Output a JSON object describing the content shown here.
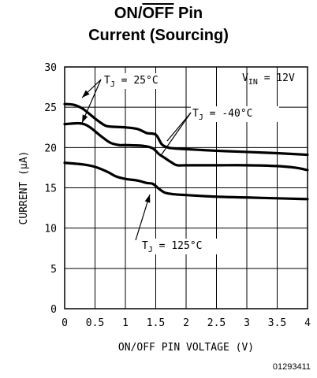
{
  "title_line1_prefix": "ON/",
  "title_line1_over": "OFF",
  "title_line1_suffix": " Pin",
  "title_line2": "Current (Sourcing)",
  "figure_code": "01293411",
  "chart_data": {
    "type": "line",
    "title": "ON/OFF Pin Current (Sourcing)",
    "xlabel": "ON/OFF PIN VOLTAGE (V)",
    "ylabel": "CURRENT (µA)",
    "xlim": [
      0,
      4
    ],
    "ylim": [
      0,
      30
    ],
    "xticks": [
      0,
      0.5,
      1,
      1.5,
      2,
      2.5,
      3,
      3.5,
      4
    ],
    "xtick_labels": [
      "0",
      "0.5",
      "1",
      "1.5",
      "2",
      "2.5",
      "3",
      "3.5",
      "4"
    ],
    "yticks": [
      0,
      5,
      10,
      15,
      20,
      25,
      30
    ],
    "ytick_labels": [
      "0",
      "5",
      "10",
      "15",
      "20",
      "25",
      "30"
    ],
    "grid": true,
    "annotation_vin": "V_IN = 12V",
    "series": [
      {
        "name": "T_J = 25°C",
        "x": [
          0,
          0.15,
          0.3,
          0.5,
          0.65,
          0.75,
          1.0,
          1.2,
          1.35,
          1.5,
          1.6,
          1.7,
          1.8,
          2.0,
          2.5,
          3.0,
          3.5,
          4.0
        ],
        "values": [
          25.4,
          25.3,
          24.8,
          23.6,
          22.8,
          22.6,
          22.5,
          22.3,
          21.8,
          21.6,
          20.4,
          20.0,
          19.9,
          19.8,
          19.6,
          19.45,
          19.3,
          19.1
        ]
      },
      {
        "name": "T_J = -40°C",
        "x": [
          0,
          0.25,
          0.4,
          0.6,
          0.75,
          0.9,
          1.0,
          1.3,
          1.45,
          1.55,
          1.65,
          1.75,
          1.85,
          2.0,
          2.5,
          3.0,
          3.5,
          3.8,
          4.0
        ],
        "values": [
          22.9,
          23.0,
          22.6,
          21.4,
          20.6,
          20.3,
          20.3,
          20.2,
          19.9,
          19.2,
          18.7,
          18.2,
          17.8,
          17.8,
          17.8,
          17.8,
          17.7,
          17.5,
          17.2
        ]
      },
      {
        "name": "T_J = 125°C",
        "x": [
          0,
          0.3,
          0.5,
          0.7,
          0.85,
          1.0,
          1.2,
          1.35,
          1.45,
          1.55,
          1.65,
          1.8,
          2.0,
          2.5,
          3.0,
          3.5,
          4.0
        ],
        "values": [
          18.1,
          17.9,
          17.6,
          17.0,
          16.4,
          16.1,
          15.9,
          15.6,
          15.5,
          14.9,
          14.4,
          14.2,
          14.1,
          13.9,
          13.8,
          13.7,
          13.6
        ]
      }
    ],
    "labels": [
      {
        "text": "T_J = 25°C",
        "series": 0
      },
      {
        "text": "T_J = -40°C",
        "series": 1
      },
      {
        "text": "T_J = 125°C",
        "series": 2
      }
    ]
  }
}
